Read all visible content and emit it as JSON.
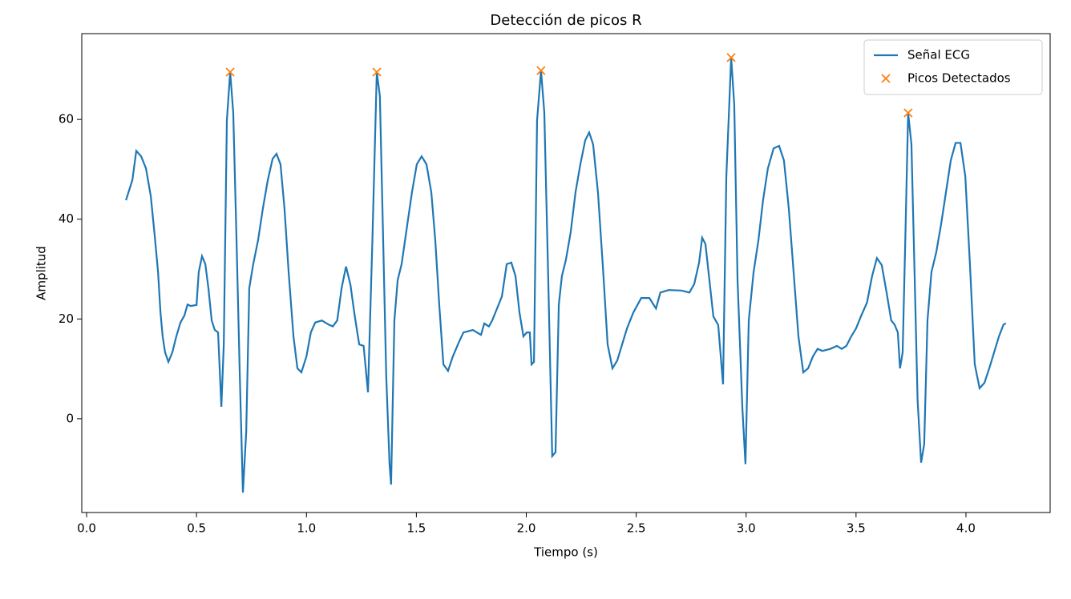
{
  "chart_data": {
    "type": "line",
    "title": "Detección de picos R",
    "xlabel": "Tiempo (s)",
    "ylabel": "Amplitud",
    "xlim": [
      -0.022,
      4.383
    ],
    "ylim": [
      -18.8,
      77.2
    ],
    "xticks": [
      {
        "value": 0,
        "label": "0.0"
      },
      0.5,
      {
        "value": 1,
        "label": "1.0"
      },
      1.5,
      {
        "value": 2,
        "label": "2.0"
      },
      2.5,
      {
        "value": 3,
        "label": "3.0"
      },
      3.5,
      {
        "value": 4,
        "label": "4.0"
      }
    ],
    "yticks": [
      0,
      20,
      40,
      60
    ],
    "legend": "upper right",
    "series": [
      {
        "name": "Señal ECG",
        "color": "#1f77b4",
        "mode": "line",
        "x": [
          0.179,
          0.208,
          0.226,
          0.248,
          0.27,
          0.292,
          0.31,
          0.325,
          0.336,
          0.346,
          0.357,
          0.372,
          0.39,
          0.408,
          0.427,
          0.445,
          0.459,
          0.474,
          0.5,
          0.51,
          0.525,
          0.54,
          0.554,
          0.569,
          0.583,
          0.598,
          0.613,
          0.624,
          0.638,
          0.653,
          0.667,
          0.682,
          0.696,
          0.711,
          0.726,
          0.74,
          0.758,
          0.78,
          0.802,
          0.824,
          0.846,
          0.864,
          0.882,
          0.9,
          0.919,
          0.941,
          0.959,
          0.977,
          1.0,
          1.02,
          1.04,
          1.07,
          1.1,
          1.12,
          1.14,
          1.16,
          1.18,
          1.2,
          1.22,
          1.24,
          1.26,
          1.28,
          1.3,
          1.32,
          1.334,
          1.349,
          1.363,
          1.378,
          1.385,
          1.4,
          1.415,
          1.433,
          1.459,
          1.48,
          1.502,
          1.524,
          1.546,
          1.568,
          1.586,
          1.604,
          1.623,
          1.644,
          1.666,
          1.692,
          1.714,
          1.757,
          1.794,
          1.809,
          1.83,
          1.845,
          1.867,
          1.889,
          1.911,
          1.932,
          1.951,
          1.969,
          1.987,
          2.002,
          2.016,
          2.024,
          2.035,
          2.049,
          2.067,
          2.082,
          2.1,
          2.118,
          2.133,
          2.148,
          2.162,
          2.18,
          2.202,
          2.224,
          2.246,
          2.268,
          2.286,
          2.304,
          2.326,
          2.35,
          2.37,
          2.392,
          2.414,
          2.436,
          2.458,
          2.487,
          2.523,
          2.56,
          2.59,
          2.61,
          2.647,
          2.706,
          2.742,
          2.764,
          2.786,
          2.8,
          2.815,
          2.833,
          2.851,
          2.873,
          2.895,
          2.91,
          2.932,
          2.946,
          2.961,
          2.983,
          2.997,
          3.012,
          3.034,
          3.056,
          3.077,
          3.099,
          3.125,
          3.15,
          3.172,
          3.194,
          3.216,
          3.238,
          3.26,
          3.282,
          3.304,
          3.325,
          3.347,
          3.383,
          3.413,
          3.435,
          3.456,
          3.478,
          3.5,
          3.522,
          3.55,
          3.573,
          3.595,
          3.617,
          3.639,
          3.66,
          3.675,
          3.69,
          3.7,
          3.712,
          3.724,
          3.737,
          3.752,
          3.767,
          3.78,
          3.796,
          3.81,
          3.825,
          3.843,
          3.865,
          3.887,
          3.909,
          3.931,
          3.953,
          3.975,
          3.997,
          4.018,
          4.04,
          4.062,
          4.084,
          4.106,
          4.128,
          4.15,
          4.171,
          4.182
        ],
        "values": [
          43.8,
          47.8,
          53.7,
          52.6,
          50.2,
          44.6,
          36.6,
          29.4,
          21.3,
          16.5,
          13.3,
          11.4,
          13.3,
          16.5,
          19.3,
          20.7,
          22.9,
          22.6,
          22.8,
          29.4,
          32.6,
          31,
          26.2,
          19.7,
          17.8,
          17.3,
          2.4,
          14.9,
          59.8,
          69.5,
          61.4,
          35.8,
          10.1,
          -14.8,
          -2.7,
          26.2,
          31,
          35.8,
          42.2,
          47.8,
          52.1,
          53.1,
          51,
          42.2,
          29.4,
          16.5,
          10.1,
          9.3,
          12.5,
          17.3,
          19.3,
          19.7,
          18.9,
          18.5,
          19.7,
          26.2,
          30.5,
          26.9,
          20.5,
          14.9,
          14.6,
          5.3,
          35.8,
          69.5,
          64.7,
          35.8,
          8.5,
          -9.1,
          -13.2,
          19.7,
          27.8,
          31,
          39,
          45.4,
          51,
          52.6,
          51,
          45.4,
          35.8,
          22.9,
          10.9,
          9.6,
          12.5,
          15.2,
          17.3,
          17.8,
          16.8,
          19.1,
          18.5,
          19.7,
          22.1,
          24.5,
          31,
          31.3,
          28.6,
          21.3,
          16.5,
          17.3,
          17.3,
          10.9,
          11.4,
          59.8,
          69.8,
          61.4,
          27.8,
          -7.5,
          -6.7,
          22.9,
          28.6,
          31.8,
          37.4,
          45.4,
          51,
          55.8,
          57.4,
          55,
          45.4,
          29.4,
          14.9,
          10.1,
          11.7,
          14.9,
          18.1,
          21.3,
          24.2,
          24.2,
          22.1,
          25.3,
          25.8,
          25.7,
          25.3,
          27,
          31.3,
          36.3,
          35,
          27.8,
          20.5,
          18.8,
          6.9,
          48.6,
          72.4,
          63,
          27.8,
          2.1,
          -9.1,
          19.7,
          29.4,
          35.8,
          43.8,
          50.2,
          54.2,
          54.7,
          51.8,
          42.2,
          29.4,
          16.5,
          9.3,
          10.1,
          12.5,
          14,
          13.6,
          14,
          14.6,
          14,
          14.6,
          16.5,
          18.1,
          20.5,
          23.3,
          28.6,
          32.2,
          30.8,
          25.3,
          19.7,
          18.9,
          17.3,
          10.1,
          13.3,
          35.8,
          61.3,
          55,
          27.8,
          3.7,
          -8.8,
          -5.1,
          19.7,
          29.4,
          33.4,
          39,
          45.4,
          51.8,
          55.3,
          55.3,
          48.6,
          31,
          10.9,
          6.1,
          7.2,
          10.1,
          13.3,
          16.5,
          18.9,
          19.1
        ]
      },
      {
        "name": "Picos Detectados",
        "color": "#ff7f0e",
        "mode": "markers",
        "x": [
          0.653,
          1.32,
          2.067,
          2.932,
          3.737
        ],
        "values": [
          69.5,
          69.5,
          69.8,
          72.4,
          61.3
        ]
      }
    ]
  }
}
